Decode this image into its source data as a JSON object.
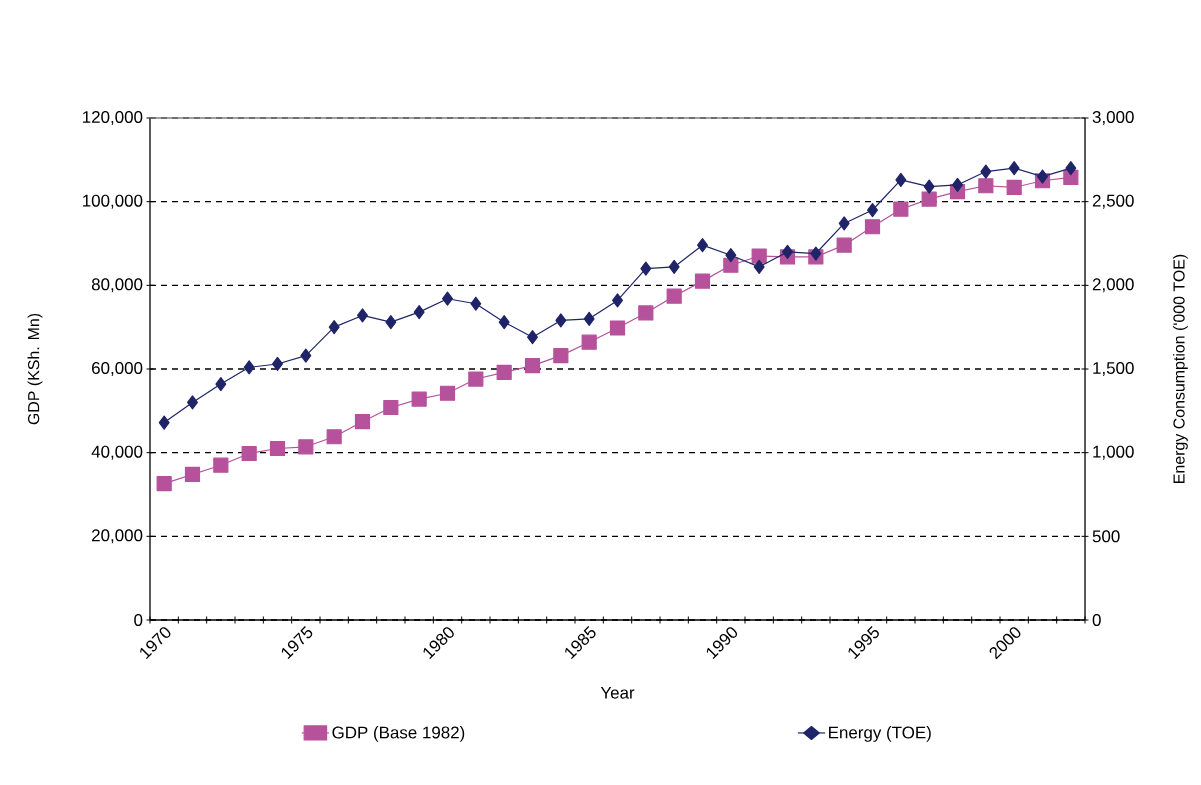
{
  "chart_data": {
    "type": "line",
    "xlabel": "Year",
    "ylabel": "GDP (KSh. Mn)",
    "y2label": "Energy Consumption ('000 TOE)",
    "categories": [
      "1970",
      null,
      null,
      null,
      null,
      "1975",
      null,
      null,
      null,
      null,
      "1980",
      null,
      null,
      null,
      null,
      "1985",
      null,
      null,
      null,
      null,
      "1990",
      null,
      null,
      null,
      null,
      "1995",
      null,
      null,
      null,
      null,
      "2000",
      null,
      null
    ],
    "series": [
      {
        "name": "GDP (Base 1982)",
        "color": "#b5529b",
        "marker": "square",
        "values": [
          32600,
          34800,
          37000,
          39800,
          41000,
          41400,
          43800,
          47400,
          50800,
          52800,
          54200,
          57600,
          59200,
          60800,
          63200,
          66400,
          69800,
          73400,
          77400,
          81000,
          84800,
          87000,
          86800,
          86800,
          89600,
          94000,
          98200,
          100600,
          102400,
          103800,
          103400,
          105000,
          105800
        ]
      },
      {
        "name": "Energy (TOE)",
        "color": "#1f2468",
        "marker": "diamond",
        "axis": "y2",
        "values": [
          1180,
          1300,
          1410,
          1510,
          1530,
          1580,
          1750,
          1820,
          1780,
          1840,
          1920,
          1890,
          1780,
          1690,
          1790,
          1800,
          1910,
          2100,
          2110,
          2240,
          2180,
          2110,
          2200,
          2190,
          2370,
          2450,
          2630,
          2590,
          2600,
          2680,
          2700,
          2650,
          2700
        ]
      }
    ],
    "ylim": [
      0,
      120000
    ],
    "yticks": [
      0,
      {
        "value": 20000,
        "label": "20,000"
      },
      {
        "value": 40000,
        "label": "40,000"
      },
      {
        "value": 60000,
        "label": "60,000"
      },
      {
        "value": 80000,
        "label": "80,000"
      },
      {
        "value": 100000,
        "label": "100,000"
      },
      {
        "value": 120000,
        "label": "120,000"
      }
    ],
    "y2lim": [
      0,
      3000
    ],
    "y2ticks": [
      0,
      500,
      {
        "value": 1000,
        "label": "1,000"
      },
      {
        "value": 1500,
        "label": "1,500"
      },
      {
        "value": 2000,
        "label": "2,000"
      },
      {
        "value": 2500,
        "label": "2,500"
      },
      {
        "value": 3000,
        "label": "3,000"
      }
    ],
    "grid": "y",
    "legend": "bottom",
    "line_style": "solid"
  }
}
